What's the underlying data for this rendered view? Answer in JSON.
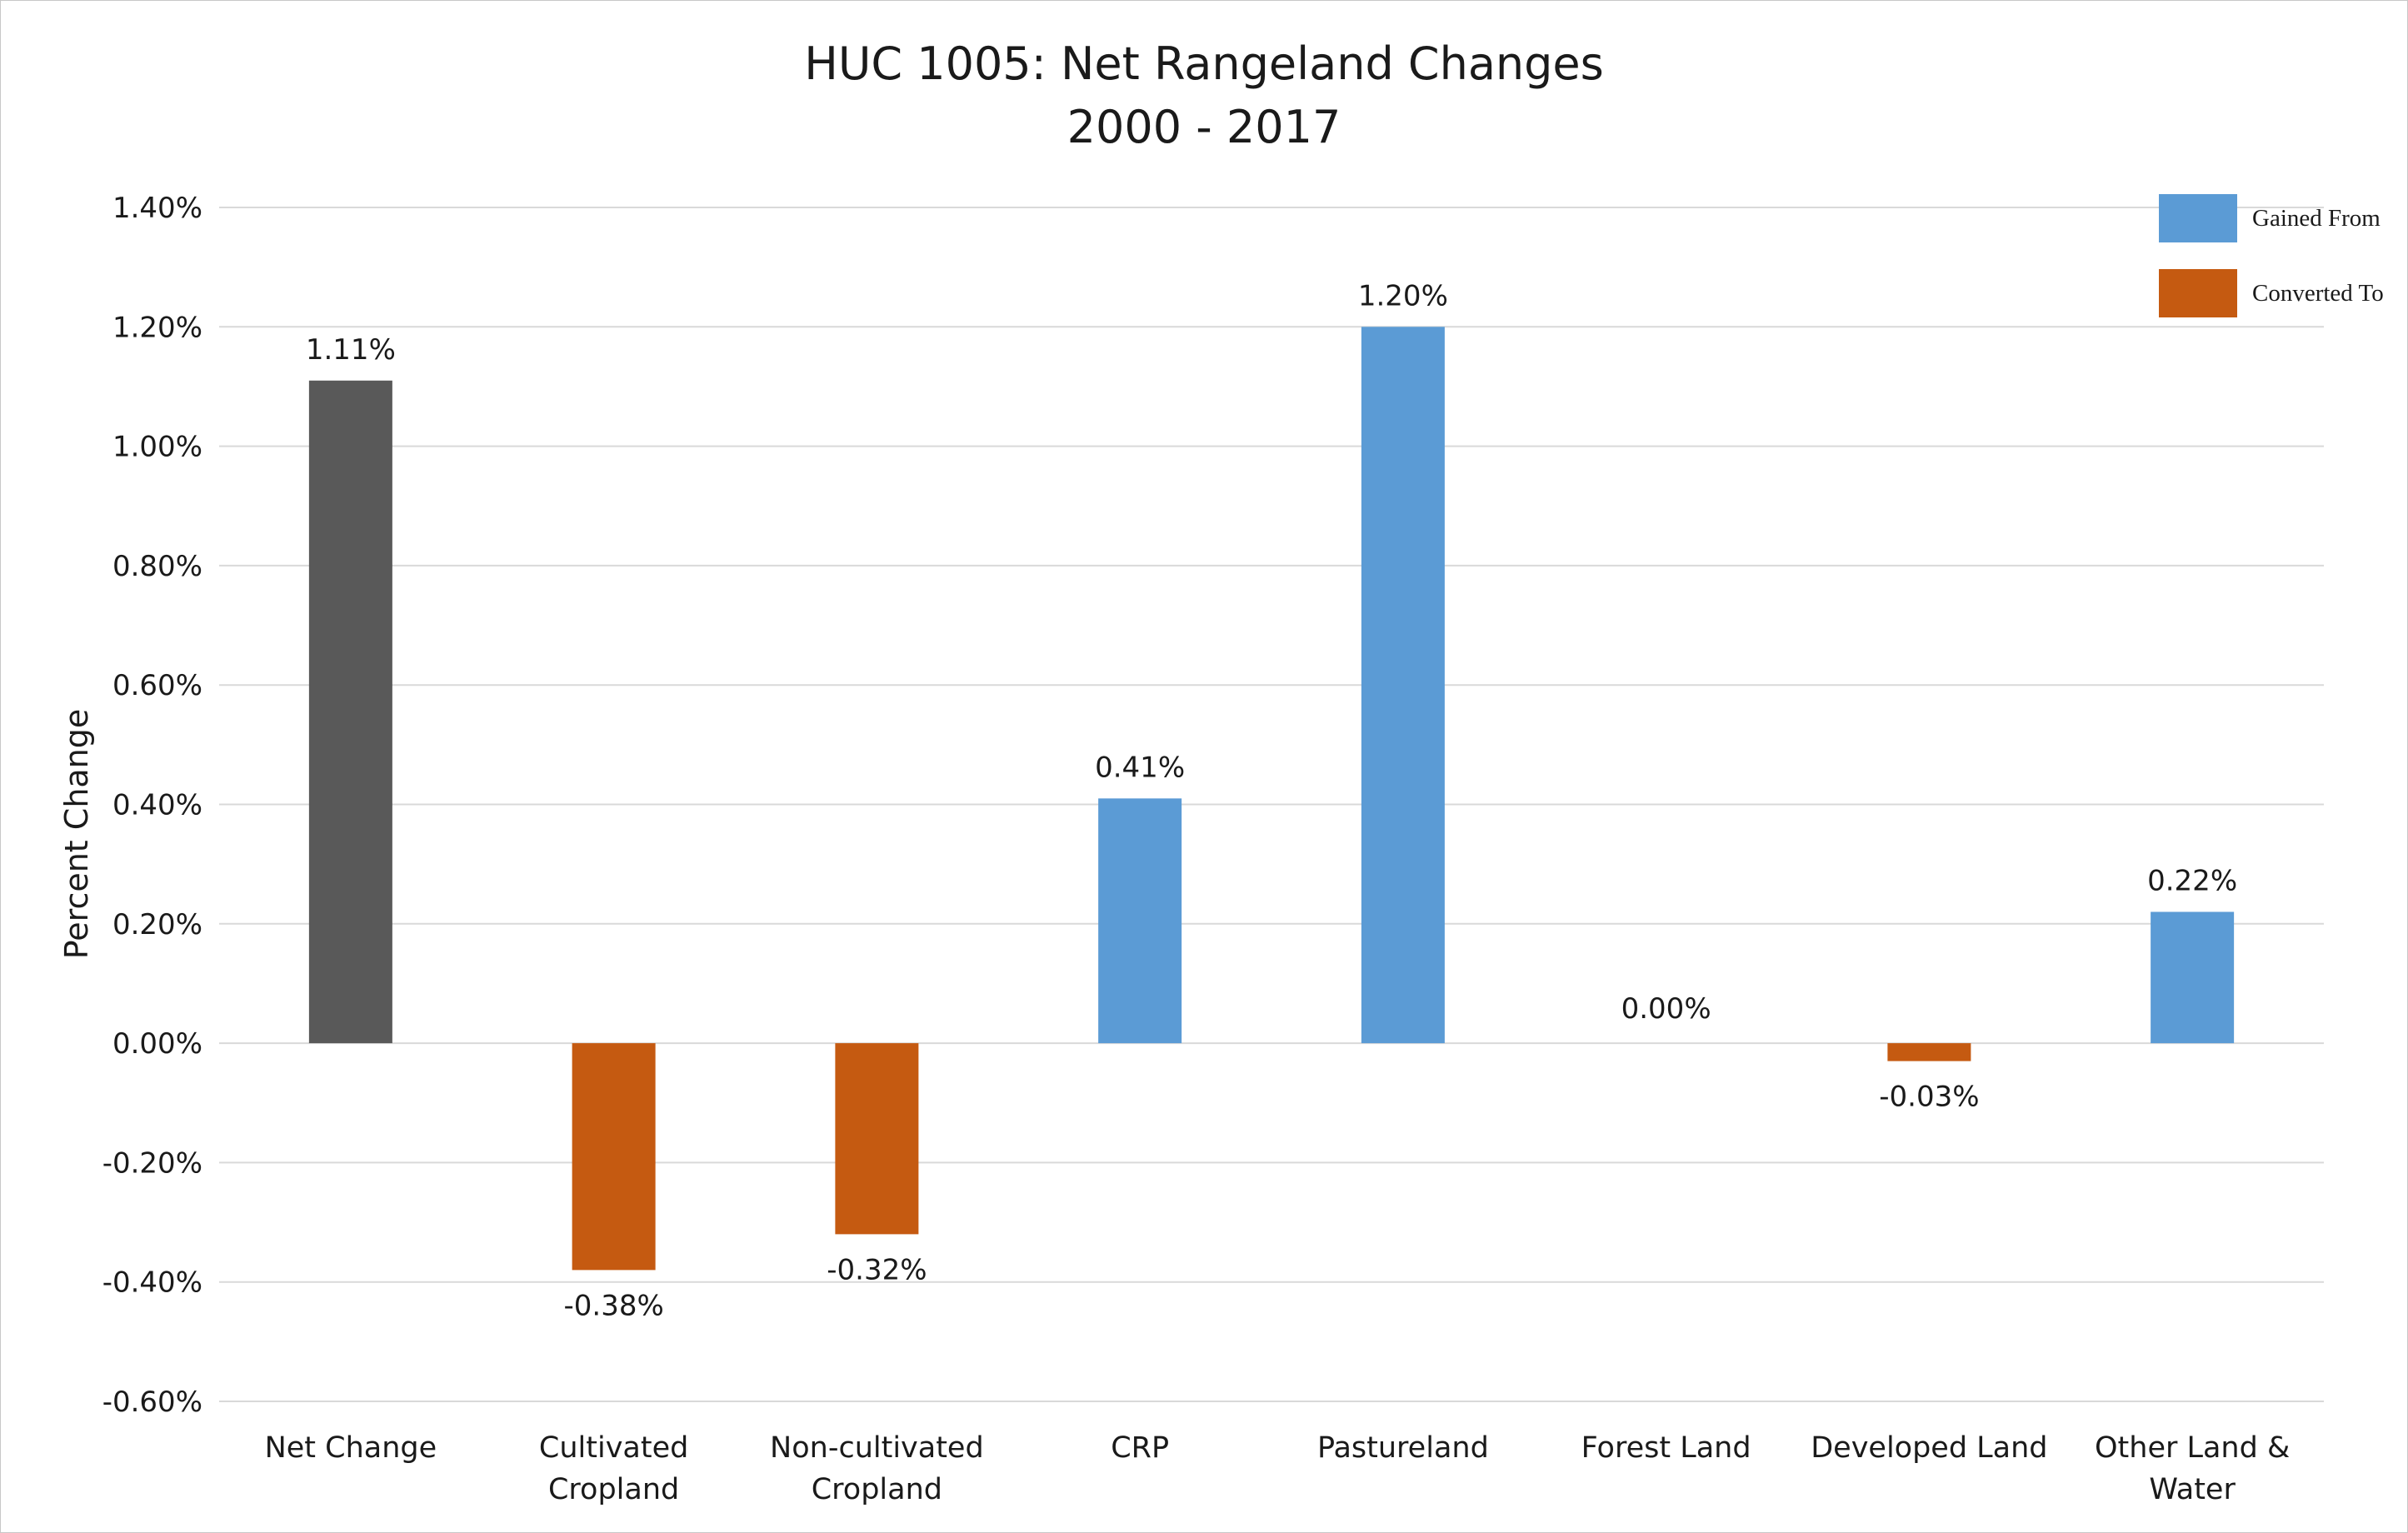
{
  "chart_data": {
    "type": "bar",
    "title": [
      "HUC 1005: Net Rangeland Changes",
      "2000 - 2017"
    ],
    "ylabel": "Percent Change",
    "xlabel": "",
    "ylim": [
      -0.6,
      1.4
    ],
    "yticks": [
      1.4,
      1.2,
      1.0,
      0.8,
      0.6,
      0.4,
      0.2,
      0.0,
      -0.2,
      -0.4,
      -0.6
    ],
    "ytick_labels": [
      "1.40%",
      "1.20%",
      "1.00%",
      "0.80%",
      "0.60%",
      "0.40%",
      "0.20%",
      "0.00%",
      "-0.20%",
      "-0.40%",
      "-0.60%"
    ],
    "grid": true,
    "legend_position": "top-right",
    "categories": [
      [
        "Net Change"
      ],
      [
        "Cultivated",
        "Cropland"
      ],
      [
        "Non-cultivated",
        "Cropland"
      ],
      [
        "CRP"
      ],
      [
        "Pastureland"
      ],
      [
        "Forest Land"
      ],
      [
        "Developed Land"
      ],
      [
        "Other Land &",
        "Water"
      ]
    ],
    "values": [
      1.11,
      -0.38,
      -0.32,
      0.41,
      1.2,
      0.0,
      -0.03,
      0.22
    ],
    "value_labels": [
      "1.11%",
      "-0.38%",
      "-0.32%",
      "0.41%",
      "1.20%",
      "0.00%",
      "-0.03%",
      "0.22%"
    ],
    "bar_types": [
      "net",
      "converted",
      "converted",
      "gained",
      "gained",
      "gained",
      "converted",
      "gained"
    ],
    "colors": {
      "net": "#595959",
      "gained": "#5b9bd5",
      "converted": "#c55a11"
    },
    "legend": [
      {
        "key": "gained",
        "label": "Gained From"
      },
      {
        "key": "converted",
        "label": "Converted To"
      }
    ]
  }
}
